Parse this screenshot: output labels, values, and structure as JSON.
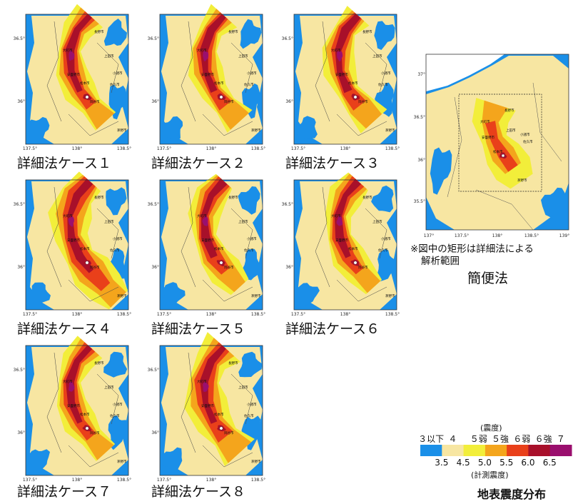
{
  "panels": [
    {
      "label": "詳細法ケース１",
      "variant": 1
    },
    {
      "label": "詳細法ケース２",
      "variant": 2
    },
    {
      "label": "詳細法ケース３",
      "variant": 3
    },
    {
      "label": "詳細法ケース４",
      "variant": 4
    },
    {
      "label": "詳細法ケース５",
      "variant": 5
    },
    {
      "label": "詳細法ケース６",
      "variant": 6
    },
    {
      "label": "詳細法ケース７",
      "variant": 7
    },
    {
      "label": "詳細法ケース８",
      "variant": 8
    }
  ],
  "panel_ticks": {
    "x": [
      "137.5°",
      "138°",
      "138.5°"
    ],
    "y": [
      "36.5°",
      "36°"
    ]
  },
  "panel_cities": [
    "長野市",
    "大町市",
    "上田市",
    "小諸市",
    "安曇野市",
    "松本市",
    "佐久市",
    "岡谷市",
    "茅野市"
  ],
  "overview": {
    "label": "簡便法",
    "note_line1": "※図中の矩形は詳細法による",
    "note_line2": "解析範囲",
    "x_ticks": [
      "137°",
      "137.5°",
      "138°",
      "138.5°",
      "139°"
    ],
    "y_ticks": [
      "37°",
      "36.5°",
      "36°",
      "35.5°"
    ],
    "cities": [
      "長野市",
      "大町市",
      "上田市",
      "小諸市",
      "安曇野市",
      "佐久市",
      "松本市",
      "茅野市"
    ]
  },
  "legend": {
    "title_top": "(震度)",
    "classes": [
      "３以下",
      "４",
      "５弱",
      "５強",
      "６弱",
      "６強",
      "７"
    ],
    "values": [
      "3.5",
      "4.5",
      "5.0",
      "5.5",
      "6.0",
      "6.5"
    ],
    "title_bottom": "(計測震度)",
    "colors": [
      "#1a8fe8",
      "#f7e6a2",
      "#f2ee3a",
      "#f4a51c",
      "#e9401a",
      "#a8102a",
      "#9a0f6e"
    ]
  },
  "main_title": "地表震度分布"
}
